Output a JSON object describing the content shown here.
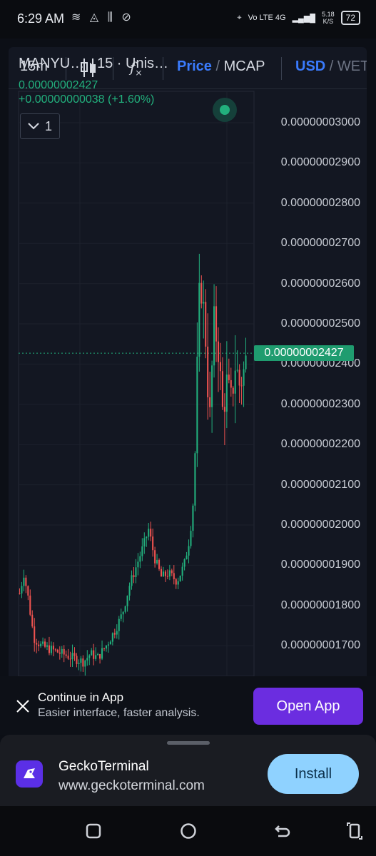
{
  "status_bar": {
    "time": "6:29 AM",
    "network": "Vo LTE 4G",
    "net_speed_value": "5.18",
    "net_speed_unit": "K/S",
    "battery": "72"
  },
  "toolbar": {
    "interval": "15m",
    "chart_type_icon": "candlestick-icon",
    "indicators_icon": "fx-icon",
    "price_label": "Price",
    "slash1": "/",
    "mcap_label": "MCAP",
    "usd_label": "USD",
    "slash2": "/",
    "weth_label": "WET"
  },
  "legend": {
    "title": "MANYU… · 15 · Unis…",
    "price": "0.00000002427",
    "change": "+0.00000000038 (+1.60%)",
    "collapse_count": "1"
  },
  "chart_data": {
    "type": "candlestick",
    "y_axis_ticks": [
      "0.00000003000",
      "0.00000002900",
      "0.00000002800",
      "0.00000002700",
      "0.00000002600",
      "0.00000002500",
      "0.00000002400",
      "0.00000002300",
      "0.00000002200",
      "0.00000002100",
      "0.00000002000",
      "0.00000001900",
      "0.00000001800",
      "0.00000001700"
    ],
    "ylim": [
      1.66e-08,
      3.03e-08
    ],
    "current_price": "0.00000002427",
    "up_color": "#22b07d",
    "down_color": "#ef5350"
  },
  "banner": {
    "title": "Continue in App",
    "subtitle": "Easier interface, faster analysis.",
    "button": "Open App"
  },
  "install_sheet": {
    "app_name": "GeckoTerminal",
    "url": "www.geckoterminal.com",
    "button": "Install"
  }
}
